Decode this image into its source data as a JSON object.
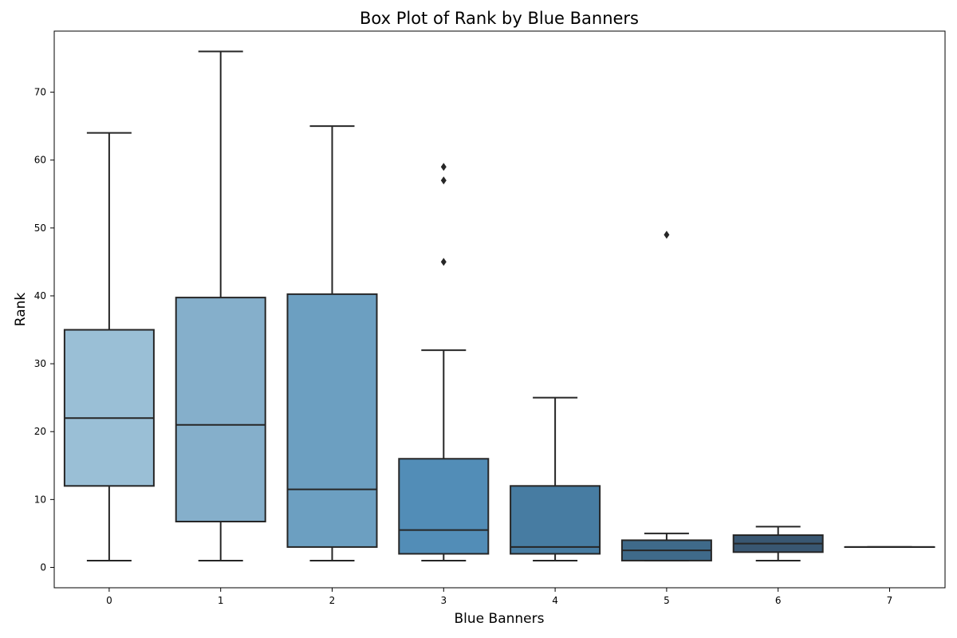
{
  "chart_data": {
    "type": "box",
    "title": "Box Plot of Rank by Blue Banners",
    "xlabel": "Blue Banners",
    "ylabel": "Rank",
    "ylim": [
      -3,
      79
    ],
    "yticks": [
      0,
      10,
      20,
      30,
      40,
      50,
      60,
      70
    ],
    "grid": false,
    "categories": [
      "0",
      "1",
      "2",
      "3",
      "4",
      "5",
      "6",
      "7"
    ],
    "boxes": [
      {
        "category": "0",
        "whisker_low": 1,
        "q1": 12,
        "median": 22,
        "q3": 35,
        "whisker_high": 64,
        "outliers": [],
        "color": "#9ABFD6"
      },
      {
        "category": "1",
        "whisker_low": 1,
        "q1": 6.75,
        "median": 21,
        "q3": 39.75,
        "whisker_high": 76,
        "outliers": [],
        "color": "#85AFCB"
      },
      {
        "category": "2",
        "whisker_low": 1,
        "q1": 3,
        "median": 11.5,
        "q3": 40.25,
        "whisker_high": 65,
        "outliers": [],
        "color": "#6C9FC1"
      },
      {
        "category": "3",
        "whisker_low": 1,
        "q1": 2,
        "median": 5.5,
        "q3": 16,
        "whisker_high": 32,
        "outliers": [
          45,
          57,
          59
        ],
        "color": "#528DB7"
      },
      {
        "category": "4",
        "whisker_low": 1,
        "q1": 2,
        "median": 3,
        "q3": 12,
        "whisker_high": 25,
        "outliers": [],
        "color": "#477CA2"
      },
      {
        "category": "5",
        "whisker_low": 1,
        "q1": 1,
        "median": 2.5,
        "q3": 4,
        "whisker_high": 5,
        "outliers": [
          49
        ],
        "color": "#3F6A8A"
      },
      {
        "category": "6",
        "whisker_low": 1,
        "q1": 2.25,
        "median": 3.5,
        "q3": 4.75,
        "whisker_high": 6,
        "outliers": [],
        "color": "#395772"
      },
      {
        "category": "7",
        "whisker_low": 3,
        "q1": 3,
        "median": 3,
        "q3": 3,
        "whisker_high": 3,
        "outliers": [],
        "color": "#34495E"
      }
    ],
    "line_color": "#262626"
  }
}
